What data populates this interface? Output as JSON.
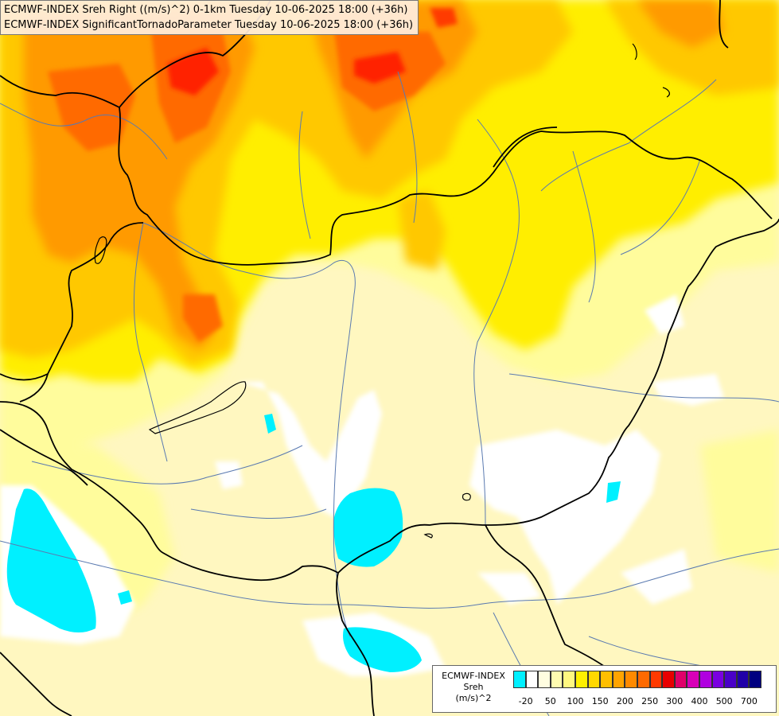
{
  "map": {
    "title_lines": [
      "ECMWF-INDEX Sreh Right ((m/s)^2) 0-1km Tuesday 10-06-2025 18:00 (+36h)",
      "ECMWF-INDEX SignificantTornadoParameter Tuesday 10-06-2025 18:00 (+36h)"
    ],
    "colors": {
      "background": "#fff7c0",
      "light_yellow": "#fffc9c",
      "yellow": "#ffee00",
      "gold": "#ffc800",
      "orange": "#ff9a00",
      "dark_orange": "#ff6a00",
      "red": "#ff2200",
      "white_area": "#ffffff",
      "cyan_area": "#00f0ff",
      "borders": "#000000",
      "rivers": "#5a7ab0"
    }
  },
  "legend": {
    "lines": [
      "ECMWF-INDEX",
      "Sreh",
      "(m/s)^2"
    ],
    "tick_labels": [
      "-20",
      "50",
      "100",
      "150",
      "200",
      "250",
      "300",
      "400",
      "500",
      "700"
    ],
    "swatch_colors": [
      "#00f0ff",
      "#ffffff",
      "#fffde0",
      "#fffcb0",
      "#fff880",
      "#fff000",
      "#ffd800",
      "#ffbf00",
      "#ffa400",
      "#ff8a00",
      "#ff6a00",
      "#ff3a00",
      "#e80000",
      "#e0006a",
      "#d800b8",
      "#b000e0",
      "#7a00e0",
      "#4a00c8",
      "#2000a8",
      "#000080"
    ]
  }
}
